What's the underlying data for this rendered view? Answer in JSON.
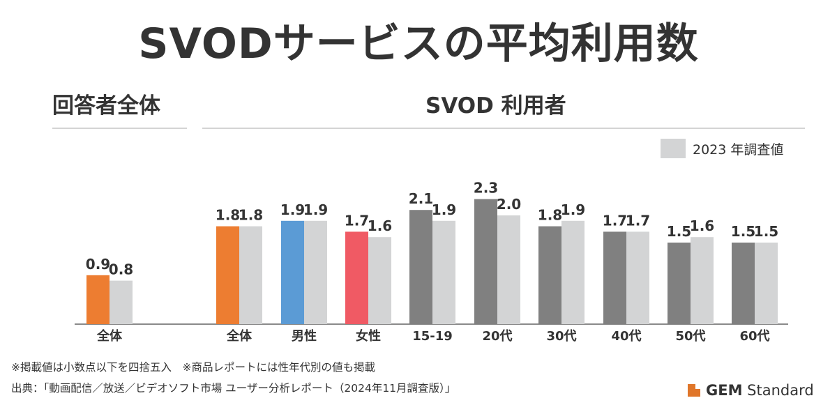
{
  "title": "SVODサービスの平均利用数",
  "sections": {
    "all_respondents": "回答者全体",
    "svod_users": "SVOD 利用者"
  },
  "legend": {
    "label": "2023 年調査値"
  },
  "colors": {
    "orange": "#ed7d31",
    "blue": "#5b9bd5",
    "red": "#f05a64",
    "dark_gray": "#808080",
    "light_gray": "#d3d4d5"
  },
  "chart_data": {
    "type": "bar",
    "ylim": [
      0,
      2.5
    ],
    "groups": [
      {
        "label": "全体",
        "current": 0.9,
        "prior": 0.8,
        "current_color": "orange"
      },
      {
        "label": "全体",
        "current": 1.8,
        "prior": 1.8,
        "current_color": "orange"
      },
      {
        "label": "男性",
        "current": 1.9,
        "prior": 1.9,
        "current_color": "blue"
      },
      {
        "label": "女性",
        "current": 1.7,
        "prior": 1.6,
        "current_color": "red"
      },
      {
        "label": "15-19",
        "current": 2.1,
        "prior": 1.9,
        "current_color": "dark_gray"
      },
      {
        "label": "20代",
        "current": 2.3,
        "prior": 2.0,
        "current_color": "dark_gray"
      },
      {
        "label": "30代",
        "current": 1.8,
        "prior": 1.9,
        "current_color": "dark_gray"
      },
      {
        "label": "40代",
        "current": 1.7,
        "prior": 1.7,
        "current_color": "dark_gray"
      },
      {
        "label": "50代",
        "current": 1.5,
        "prior": 1.6,
        "current_color": "dark_gray"
      },
      {
        "label": "60代",
        "current": 1.5,
        "prior": 1.5,
        "current_color": "dark_gray"
      }
    ]
  },
  "notes": {
    "line1": "※掲載値は小数点以下を四捨五入　※商品レポートには性年代別の値も掲載",
    "line2": "出典：「動画配信／放送／ビデオソフト市場 ユーザー分析レポート（2024年11月調査版）」"
  },
  "brand": {
    "bold": "GEM",
    "rest": " Standard"
  }
}
